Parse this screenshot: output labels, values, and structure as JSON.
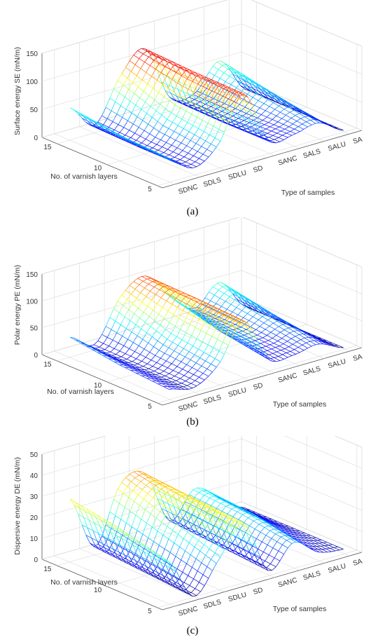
{
  "chart_data": [
    {
      "type": "surface",
      "panel_label": "a",
      "zlabel": "Surface energy SE (mN/m)",
      "ylabel": "No. of varnish layers",
      "xlabel": "Type of samples",
      "categories": [
        "SDNC",
        "SDLS",
        "SDLU",
        "SD",
        "SANC",
        "SALS",
        "SALU",
        "SA"
      ],
      "y_ticks": [
        5,
        10,
        15
      ],
      "z_ticks": [
        0,
        50,
        100,
        150
      ],
      "zlim": [
        0,
        150
      ],
      "grid": "on",
      "colormap": "jet",
      "series": [
        {
          "layers": 5,
          "values": [
            40,
            12,
            42,
            118,
            22,
            20,
            28,
            2
          ]
        },
        {
          "layers": 10,
          "values": [
            45,
            12,
            55,
            120,
            22,
            18,
            45,
            2
          ]
        },
        {
          "layers": 15,
          "values": [
            58,
            15,
            88,
            125,
            25,
            20,
            65,
            2
          ]
        }
      ]
    },
    {
      "type": "surface",
      "panel_label": "b",
      "zlabel": "Polar energy PE (mN/m)",
      "ylabel": "No. of varnish layers",
      "xlabel": "Type of samples",
      "categories": [
        "SDNC",
        "SDLS",
        "SDLU",
        "SD",
        "SANC",
        "SALS",
        "SALU",
        "SA"
      ],
      "y_ticks": [
        5,
        10,
        15
      ],
      "z_ticks": [
        0,
        50,
        100,
        150
      ],
      "zlim": [
        0,
        150
      ],
      "grid": "on",
      "colormap": "jet",
      "series": [
        {
          "layers": 5,
          "values": [
            18,
            8,
            38,
            105,
            20,
            15,
            22,
            2
          ]
        },
        {
          "layers": 10,
          "values": [
            25,
            10,
            52,
            110,
            35,
            22,
            40,
            2
          ]
        },
        {
          "layers": 15,
          "values": [
            38,
            12,
            85,
            112,
            60,
            25,
            60,
            2
          ]
        }
      ]
    },
    {
      "type": "surface",
      "panel_label": "c",
      "zlabel": "Dispersive energy DE (mN/m)",
      "ylabel": "No. of varnish layers",
      "xlabel": "Type of samples",
      "categories": [
        "SDNC",
        "SDLS",
        "SDLU",
        "SD",
        "SANC",
        "SALS",
        "SALU",
        "SA"
      ],
      "y_ticks": [
        5,
        10,
        15
      ],
      "z_ticks": [
        0,
        10,
        20,
        30,
        40,
        50
      ],
      "zlim": [
        0,
        50
      ],
      "grid": "on",
      "colormap": "jet",
      "series": [
        {
          "layers": 5,
          "values": [
            20,
            0,
            14,
            28,
            2,
            12,
            4,
            2
          ]
        },
        {
          "layers": 10,
          "values": [
            26,
            2,
            22,
            30,
            4,
            16,
            8,
            2
          ]
        },
        {
          "layers": 15,
          "values": [
            30,
            4,
            30,
            32,
            6,
            18,
            10,
            2
          ]
        }
      ]
    }
  ],
  "captions": {
    "a": "(a)",
    "b": "(b)",
    "c": "(c)"
  }
}
